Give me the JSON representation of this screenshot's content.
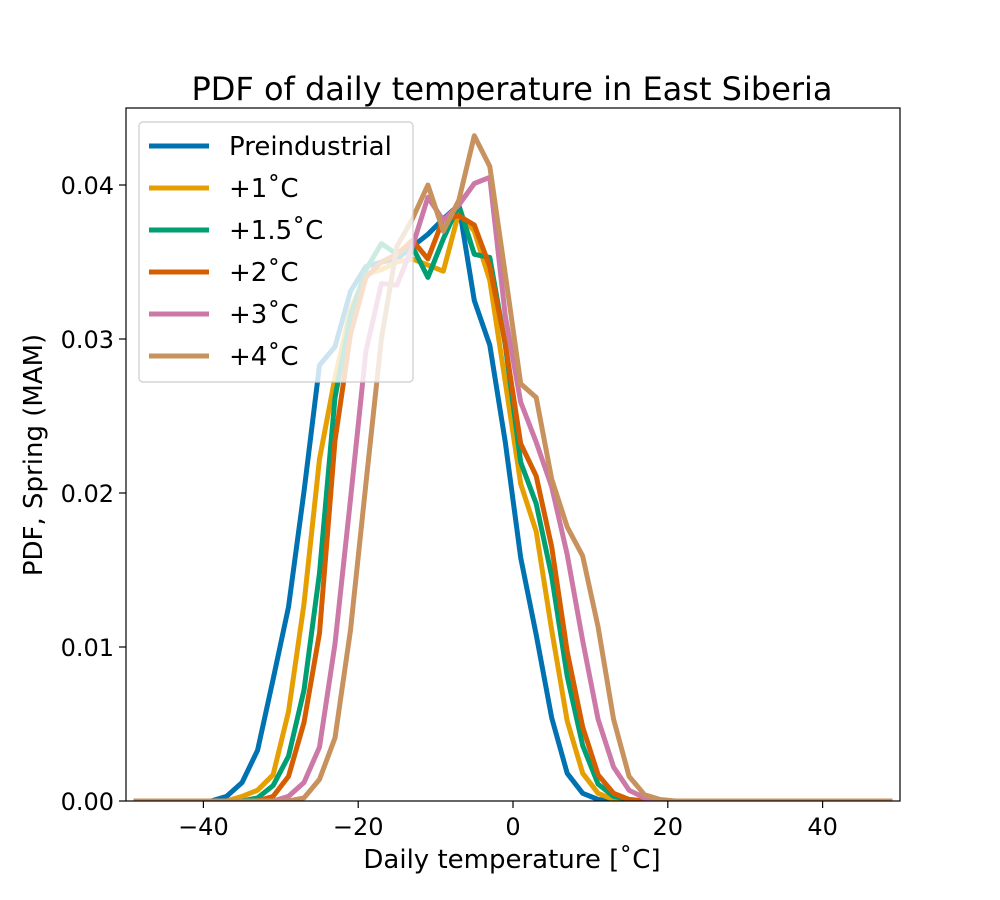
{
  "chart_data": {
    "type": "line",
    "title": "PDF of daily temperature in East Siberia",
    "xlabel": "Daily temperature [˚C]",
    "ylabel": "PDF, Spring (MAM)",
    "xlim": [
      -50,
      50
    ],
    "ylim": [
      0,
      0.045
    ],
    "xticks": [
      -40,
      -20,
      0,
      20,
      40
    ],
    "xtick_labels": [
      "−40",
      "−20",
      "0",
      "20",
      "40"
    ],
    "yticks": [
      0,
      0.01,
      0.02,
      0.03,
      0.04
    ],
    "ytick_labels": [
      "0.00",
      "0.01",
      "0.02",
      "0.03",
      "0.04"
    ],
    "grid": false,
    "legend_position": "upper-left",
    "x": [
      -49,
      -47,
      -45,
      -43,
      -41,
      -39,
      -37,
      -35,
      -33,
      -31,
      -29,
      -27,
      -25,
      -23,
      -21,
      -19,
      -17,
      -15,
      -13,
      -11,
      -9,
      -7,
      -5,
      -3,
      -1,
      1,
      3,
      5,
      7,
      9,
      11,
      13,
      15,
      17,
      19,
      21,
      23,
      25,
      27,
      29,
      31,
      33,
      35,
      37,
      39,
      41,
      43,
      45,
      47,
      49
    ],
    "series": [
      {
        "name": "Preindustrial",
        "color": "#0072b2",
        "values": [
          0,
          0,
          0,
          0,
          0,
          0,
          0.0003,
          0.0012,
          0.0033,
          0.0079,
          0.0126,
          0.0201,
          0.0283,
          0.0295,
          0.0331,
          0.0347,
          0.035,
          0.0352,
          0.036,
          0.0368,
          0.0378,
          0.0387,
          0.0325,
          0.0296,
          0.0233,
          0.0158,
          0.0108,
          0.0054,
          0.0018,
          0.0005,
          0.0001,
          0,
          0,
          0,
          0,
          0,
          0,
          0,
          0,
          0,
          0,
          0,
          0,
          0,
          0,
          0,
          0,
          0,
          0,
          0
        ]
      },
      {
        "name": "+1˚C",
        "color": "#e69f00",
        "values": [
          0,
          0,
          0,
          0,
          0,
          0,
          0,
          0.0003,
          0.0007,
          0.0017,
          0.0058,
          0.0128,
          0.0222,
          0.0275,
          0.0319,
          0.0342,
          0.0345,
          0.035,
          0.0352,
          0.0348,
          0.0344,
          0.0382,
          0.037,
          0.0338,
          0.0272,
          0.0206,
          0.0175,
          0.0111,
          0.0052,
          0.0018,
          0.0005,
          0.0001,
          0,
          0,
          0,
          0,
          0,
          0,
          0,
          0,
          0,
          0,
          0,
          0,
          0,
          0,
          0,
          0,
          0,
          0
        ]
      },
      {
        "name": "+1.5˚C",
        "color": "#009e73",
        "values": [
          0,
          0,
          0,
          0,
          0,
          0,
          0,
          0,
          0.0002,
          0.001,
          0.0029,
          0.0072,
          0.0148,
          0.0262,
          0.0315,
          0.0345,
          0.0362,
          0.0355,
          0.036,
          0.034,
          0.0365,
          0.0387,
          0.0355,
          0.0353,
          0.0296,
          0.022,
          0.0193,
          0.0146,
          0.0081,
          0.0036,
          0.0011,
          0.0003,
          0.0001,
          0,
          0,
          0,
          0,
          0,
          0,
          0,
          0,
          0,
          0,
          0,
          0,
          0,
          0,
          0,
          0,
          0
        ]
      },
      {
        "name": "+2˚C",
        "color": "#d55e00",
        "values": [
          0,
          0,
          0,
          0,
          0,
          0,
          0,
          0,
          0,
          0.0003,
          0.0016,
          0.0051,
          0.0109,
          0.0234,
          0.0303,
          0.034,
          0.035,
          0.0355,
          0.0364,
          0.0352,
          0.0378,
          0.038,
          0.0374,
          0.0347,
          0.0297,
          0.0232,
          0.0211,
          0.0165,
          0.0097,
          0.0048,
          0.0017,
          0.0005,
          0.0001,
          0,
          0,
          0,
          0,
          0,
          0,
          0,
          0,
          0,
          0,
          0,
          0,
          0,
          0,
          0,
          0,
          0
        ]
      },
      {
        "name": "+3˚C",
        "color": "#cc79a7",
        "values": [
          0,
          0,
          0,
          0,
          0,
          0,
          0,
          0,
          0,
          0,
          0.0003,
          0.0012,
          0.0035,
          0.0102,
          0.0196,
          0.0292,
          0.0336,
          0.0335,
          0.036,
          0.0392,
          0.0377,
          0.0387,
          0.0401,
          0.0405,
          0.0315,
          0.0259,
          0.0233,
          0.0204,
          0.016,
          0.0104,
          0.0053,
          0.0022,
          0.0007,
          0.0002,
          0,
          0,
          0,
          0,
          0,
          0,
          0,
          0,
          0,
          0,
          0,
          0,
          0,
          0,
          0,
          0
        ]
      },
      {
        "name": "+4˚C",
        "color": "#c8925e",
        "values": [
          0,
          0,
          0,
          0,
          0,
          0,
          0,
          0,
          0,
          0,
          0,
          0.0002,
          0.0014,
          0.0041,
          0.0111,
          0.0206,
          0.03,
          0.036,
          0.0378,
          0.04,
          0.037,
          0.039,
          0.0432,
          0.0412,
          0.0342,
          0.0271,
          0.0262,
          0.0209,
          0.0178,
          0.0159,
          0.0113,
          0.0053,
          0.0016,
          0.0004,
          0.0001,
          0,
          0,
          0,
          0,
          0,
          0,
          0,
          0,
          0,
          0,
          0,
          0,
          0,
          0,
          0
        ]
      }
    ]
  }
}
